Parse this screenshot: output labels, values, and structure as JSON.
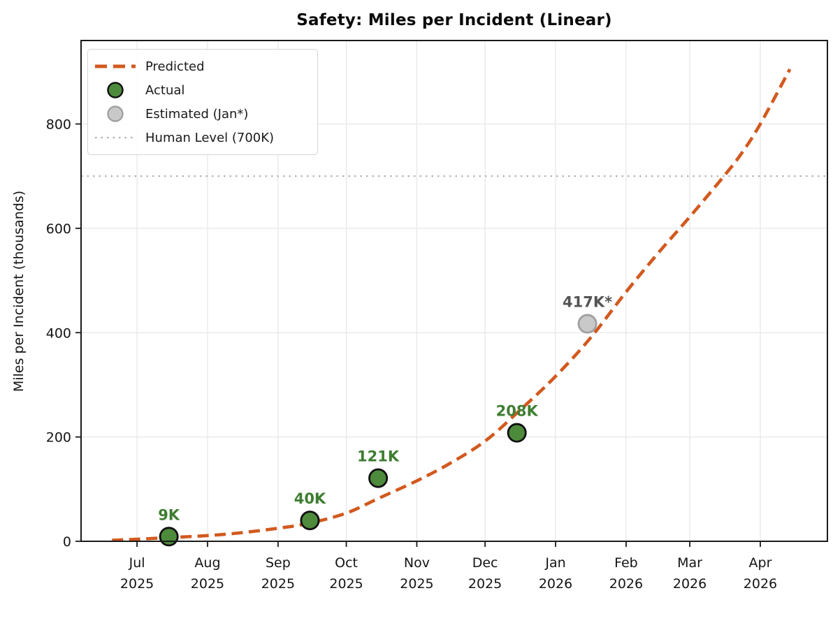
{
  "page": {
    "background": "#ffffff"
  },
  "chart_data": {
    "type": "line+scatter",
    "title": "Safety: Miles per Incident (Linear)",
    "ylabel": "Miles per Incident (thousands)",
    "xlabel": "",
    "grid": true,
    "legend_position": "upper-left",
    "ylim": [
      0,
      960
    ],
    "xlim_days": [
      -24.6,
      303.5
    ],
    "y_ticks": [
      0,
      200,
      400,
      600,
      800
    ],
    "x_ticks": [
      {
        "month": "Jul",
        "year": "2025",
        "day": 0
      },
      {
        "month": "Aug",
        "year": "2025",
        "day": 31
      },
      {
        "month": "Sep",
        "year": "2025",
        "day": 62
      },
      {
        "month": "Oct",
        "year": "2025",
        "day": 92
      },
      {
        "month": "Nov",
        "year": "2025",
        "day": 123
      },
      {
        "month": "Dec",
        "year": "2025",
        "day": 153
      },
      {
        "month": "Jan",
        "year": "2026",
        "day": 184
      },
      {
        "month": "Feb",
        "year": "2026",
        "day": 215
      },
      {
        "month": "Mar",
        "year": "2026",
        "day": 243
      },
      {
        "month": "Apr",
        "year": "2026",
        "day": 274
      }
    ],
    "human_level": {
      "value": 700,
      "label": "Human Level (700K)",
      "color": "#b0b0b0"
    },
    "series": [
      {
        "name": "Predicted",
        "kind": "dashed-line",
        "color": "#d2591e",
        "points_day_value": [
          [
            -11,
            2
          ],
          [
            0,
            4
          ],
          [
            14,
            7
          ],
          [
            31,
            11
          ],
          [
            45,
            16
          ],
          [
            62,
            25
          ],
          [
            76,
            35
          ],
          [
            92,
            54
          ],
          [
            106,
            82
          ],
          [
            123,
            116
          ],
          [
            137,
            148
          ],
          [
            153,
            192
          ],
          [
            168,
            250
          ],
          [
            183,
            312
          ],
          [
            199,
            388
          ],
          [
            215,
            478
          ],
          [
            229,
            552
          ],
          [
            243,
            622
          ],
          [
            258,
            700
          ],
          [
            266,
            745
          ],
          [
            274,
            800
          ],
          [
            287,
            905
          ]
        ]
      },
      {
        "name": "Actual",
        "kind": "scatter",
        "color": "#4e8a3c",
        "edge": "#0f0f0f",
        "label_color": "#3e7d31",
        "points": [
          {
            "label": "9K",
            "month": "Jul 2025",
            "day": 14,
            "value": 9
          },
          {
            "label": "40K",
            "month": "Sep 2025",
            "day": 76,
            "value": 40
          },
          {
            "label": "121K",
            "month": "Oct 2025",
            "day": 106,
            "value": 121
          },
          {
            "label": "208K",
            "month": "Dec 2025",
            "day": 167,
            "value": 208
          }
        ]
      },
      {
        "name": "Estimated (Jan*)",
        "kind": "scatter",
        "color": "#c9c9c9",
        "edge": "#a0a0a0",
        "label_color": "#545454",
        "points": [
          {
            "label": "417K*",
            "month": "Jan 2026",
            "day": 198,
            "value": 417
          }
        ]
      }
    ],
    "legend": {
      "entries": [
        {
          "label": "Predicted",
          "swatch": "dashed-line",
          "color": "#d2591e"
        },
        {
          "label": "Actual",
          "swatch": "circle",
          "color": "#4e8a3c",
          "edge": "#0f0f0f"
        },
        {
          "label": "Estimated (Jan*)",
          "swatch": "circle",
          "color": "#c9c9c9",
          "edge": "#a0a0a0"
        },
        {
          "label": "Human Level (700K)",
          "swatch": "dotted-line",
          "color": "#b0b0b0"
        }
      ]
    },
    "style": {
      "grid_color": "#e7e7e7",
      "spine_color": "#1a1a1a",
      "tick_text_color": "#141414"
    }
  }
}
